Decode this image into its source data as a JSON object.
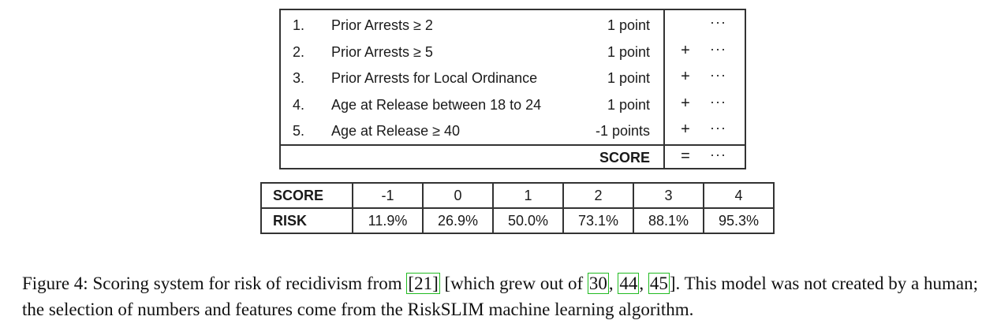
{
  "scoring_table": {
    "rows": [
      {
        "num": "1.",
        "label": "Prior Arrests ≥ 2",
        "points": "1 point",
        "op": "",
        "dots": "···"
      },
      {
        "num": "2.",
        "label": "Prior Arrests ≥ 5",
        "points": "1 point",
        "op": "+",
        "dots": "···"
      },
      {
        "num": "3.",
        "label": "Prior Arrests for Local Ordinance",
        "points": "1 point",
        "op": "+",
        "dots": "···"
      },
      {
        "num": "4.",
        "label": "Age at Release between 18 to 24",
        "points": "1 point",
        "op": "+",
        "dots": "···"
      },
      {
        "num": "5.",
        "label": "Age at Release ≥ 40",
        "points": "-1 points",
        "op": "+",
        "dots": "···"
      }
    ],
    "total": {
      "label": "SCORE",
      "op": "=",
      "dots": "···"
    }
  },
  "risk_table": {
    "score_header": "SCORE",
    "risk_header": "RISK",
    "scores": [
      "-1",
      "0",
      "1",
      "2",
      "3",
      "4"
    ],
    "risks": [
      "11.9%",
      "26.9%",
      "50.0%",
      "73.1%",
      "88.1%",
      "95.3%"
    ]
  },
  "caption": {
    "part1": "Figure 4: Scoring system for risk of recidivism from ",
    "cite1": "[21]",
    "part2": " [which grew out of ",
    "cite2": "30",
    "sep1": ", ",
    "cite3": "44",
    "sep2": ", ",
    "cite4": "45",
    "part3": "]. This model was not created by a human; the selection of numbers and features come from the RiskSLIM machine learning algorithm."
  }
}
